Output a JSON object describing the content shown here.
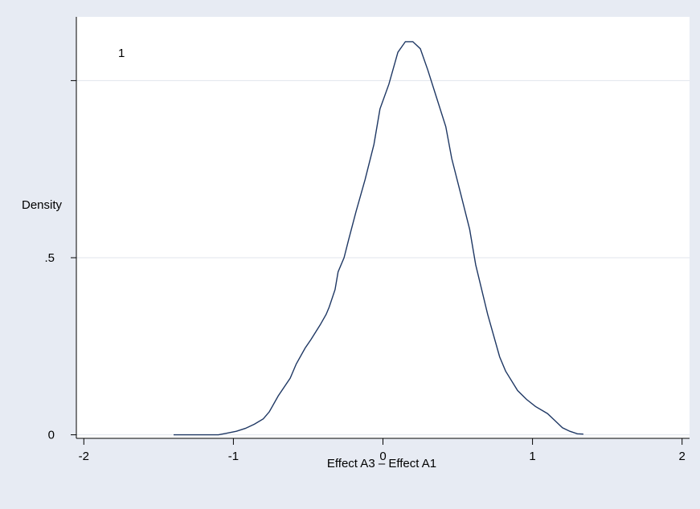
{
  "chart_data": {
    "type": "line",
    "panel_label": "1",
    "xlabel": "Effect A3 – Effect A1",
    "ylabel": "Density",
    "xlim": [
      -2.05,
      2.05
    ],
    "ylim": [
      -0.01,
      1.18
    ],
    "x_ticks": [
      -2,
      -1,
      0,
      1,
      2
    ],
    "x_tick_labels": [
      "-2",
      "-1",
      "0",
      "1",
      "2"
    ],
    "y_ticks": [
      0,
      0.5,
      1
    ],
    "y_tick_labels": [
      "0",
      ".5",
      ""
    ],
    "grid": "horizontal",
    "colors": {
      "background": "#e7ebf3",
      "plot": "#ffffff",
      "line": "#1f3864",
      "grid": "#e1e5ed",
      "axis": "#000000"
    },
    "series": [
      {
        "x": [
          -1.4,
          -1.18,
          -1.1,
          -1.05,
          -0.98,
          -0.92,
          -0.86,
          -0.8,
          -0.76,
          -0.7,
          -0.62,
          -0.58,
          -0.52,
          -0.48,
          -0.42,
          -0.38,
          -0.36,
          -0.32,
          -0.3,
          -0.26,
          -0.23,
          -0.18,
          -0.12,
          -0.06,
          -0.02,
          0.04,
          0.1,
          0.15,
          0.2,
          0.25,
          0.3,
          0.36,
          0.42,
          0.46,
          0.52,
          0.58,
          0.62,
          0.7,
          0.78,
          0.82,
          0.9,
          0.96,
          1.02,
          1.1,
          1.15,
          1.2,
          1.25,
          1.3,
          1.34
        ],
        "y": [
          0.0,
          0.0,
          0.0,
          0.004,
          0.01,
          0.018,
          0.03,
          0.045,
          0.065,
          0.11,
          0.16,
          0.2,
          0.245,
          0.27,
          0.31,
          0.34,
          0.36,
          0.41,
          0.46,
          0.5,
          0.55,
          0.63,
          0.72,
          0.82,
          0.92,
          0.99,
          1.08,
          1.11,
          1.11,
          1.09,
          1.03,
          0.95,
          0.87,
          0.78,
          0.68,
          0.58,
          0.48,
          0.34,
          0.22,
          0.18,
          0.125,
          0.1,
          0.08,
          0.06,
          0.04,
          0.02,
          0.01,
          0.003,
          0.002
        ]
      }
    ]
  }
}
